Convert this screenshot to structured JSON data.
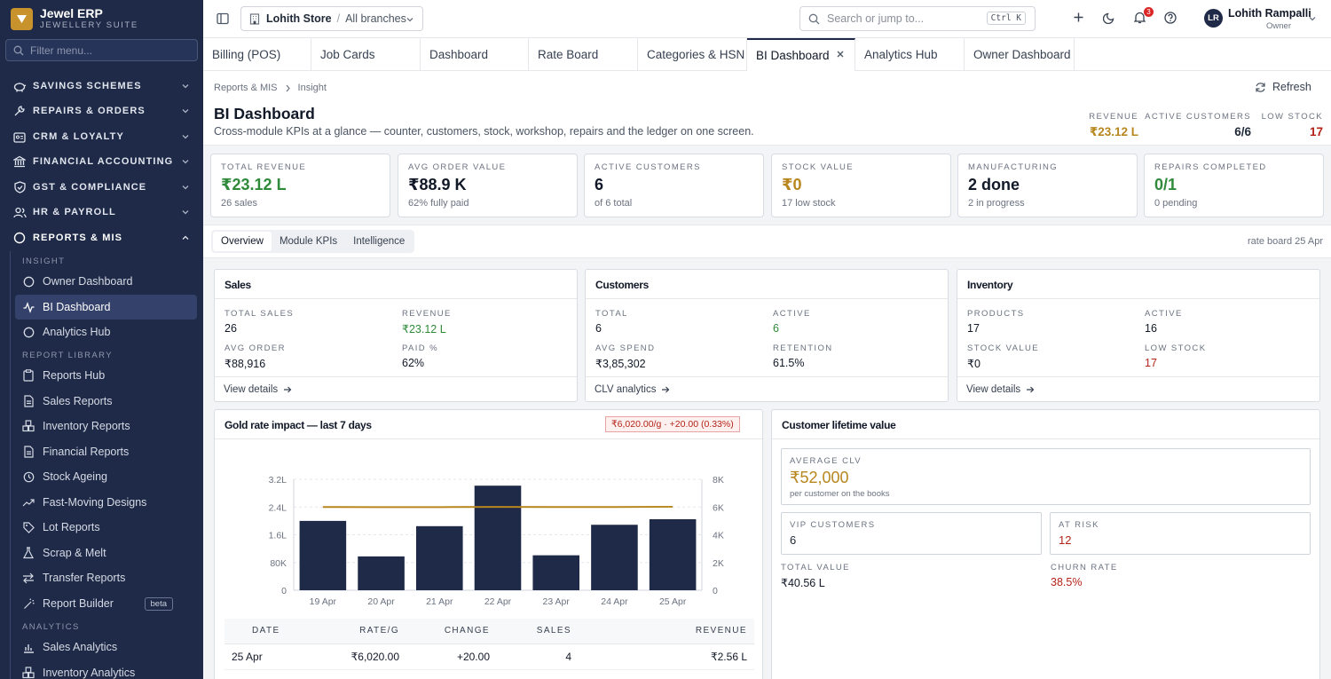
{
  "brand": {
    "name": "Jewel ERP",
    "subtitle": "JEWELLERY SUITE"
  },
  "sidebar": {
    "filter_placeholder": "Filter menu...",
    "sections": [
      {
        "label": "SAVINGS SCHEMES",
        "icon": "piggy-bank-icon"
      },
      {
        "label": "REPAIRS & ORDERS",
        "icon": "wrench-icon"
      },
      {
        "label": "CRM & LOYALTY",
        "icon": "id-card-icon"
      },
      {
        "label": "FINANCIAL ACCOUNTING",
        "icon": "bank-icon"
      },
      {
        "label": "GST & COMPLIANCE",
        "icon": "shield-icon"
      },
      {
        "label": "HR & PAYROLL",
        "icon": "users-icon"
      },
      {
        "label": "REPORTS & MIS",
        "icon": "circle-icon",
        "expanded": true
      }
    ],
    "group_insight": "INSIGHT",
    "group_library": "REPORT LIBRARY",
    "group_analytics": "ANALYTICS",
    "items": [
      {
        "label": "Owner Dashboard",
        "icon": "circle-icon"
      },
      {
        "label": "BI Dashboard",
        "icon": "activity-icon",
        "active": true
      },
      {
        "label": "Analytics Hub",
        "icon": "circle-icon"
      },
      {
        "label": "Reports Hub",
        "icon": "clipboard-icon"
      },
      {
        "label": "Sales Reports",
        "icon": "document-icon"
      },
      {
        "label": "Inventory Reports",
        "icon": "boxes-icon"
      },
      {
        "label": "Financial Reports",
        "icon": "document-icon"
      },
      {
        "label": "Stock Ageing",
        "icon": "clock-icon"
      },
      {
        "label": "Fast-Moving Designs",
        "icon": "trending-up-icon"
      },
      {
        "label": "Lot Reports",
        "icon": "tag-icon"
      },
      {
        "label": "Scrap & Melt",
        "icon": "flask-icon"
      },
      {
        "label": "Transfer Reports",
        "icon": "transfer-icon"
      },
      {
        "label": "Report Builder",
        "icon": "wand-icon",
        "badge": "beta"
      },
      {
        "label": "Sales Analytics",
        "icon": "chart-icon"
      },
      {
        "label": "Inventory Analytics",
        "icon": "boxes-icon"
      }
    ]
  },
  "topbar": {
    "store": "Lohith Store",
    "branch": "All branches",
    "search_placeholder": "Search or jump to...",
    "shortcut": "Ctrl K",
    "notifications": "3",
    "user": {
      "initials": "LR",
      "name": "Lohith Rampalli",
      "role": "Owner"
    }
  },
  "tabs": [
    "Billing (POS)",
    "Job Cards",
    "Dashboard",
    "Rate Board",
    "Categories & HSN",
    "BI Dashboard",
    "Analytics Hub",
    "Owner Dashboard"
  ],
  "active_tab": "BI Dashboard",
  "breadcrumb": {
    "parent": "Reports & MIS",
    "current": "Insight"
  },
  "refresh_label": "Refresh",
  "page": {
    "title": "BI Dashboard",
    "subtitle": "Cross-module KPIs at a glance — counter, customers, stock, workshop, repairs and the ledger on one screen."
  },
  "header_stats": [
    {
      "label": "REVENUE",
      "value": "₹23.12 L"
    },
    {
      "label": "ACTIVE CUSTOMERS",
      "value": "6/6"
    },
    {
      "label": "LOW STOCK",
      "value": "17"
    }
  ],
  "kpis": [
    {
      "label": "TOTAL REVENUE",
      "value": "₹23.12 L",
      "sub": "26 sales"
    },
    {
      "label": "AVG ORDER VALUE",
      "value": "₹88.9 K",
      "sub": "62% fully paid"
    },
    {
      "label": "ACTIVE CUSTOMERS",
      "value": "6",
      "sub": "of 6 total"
    },
    {
      "label": "STOCK VALUE",
      "value": "₹0",
      "sub": "17 low stock"
    },
    {
      "label": "MANUFACTURING",
      "value": "2 done",
      "sub": "2 in progress"
    },
    {
      "label": "REPAIRS COMPLETED",
      "value": "0/1",
      "sub": "0 pending"
    }
  ],
  "view_tabs": [
    "Overview",
    "Module KPIs",
    "Intelligence"
  ],
  "rate_board_note": "rate board 25 Apr",
  "sales_panel": {
    "title": "Sales",
    "cells": [
      {
        "label": "TOTAL SALES",
        "value": "26"
      },
      {
        "label": "REVENUE",
        "value": "₹23.12 L"
      },
      {
        "label": "AVG ORDER",
        "value": "₹88,916"
      },
      {
        "label": "PAID %",
        "value": "62%"
      }
    ],
    "footer": "View details"
  },
  "customers_panel": {
    "title": "Customers",
    "cells": [
      {
        "label": "TOTAL",
        "value": "6"
      },
      {
        "label": "ACTIVE",
        "value": "6"
      },
      {
        "label": "AVG SPEND",
        "value": "₹3,85,302"
      },
      {
        "label": "RETENTION",
        "value": "61.5%"
      }
    ],
    "footer": "CLV analytics"
  },
  "inventory_panel": {
    "title": "Inventory",
    "cells": [
      {
        "label": "PRODUCTS",
        "value": "17"
      },
      {
        "label": "ACTIVE",
        "value": "16"
      },
      {
        "label": "STOCK VALUE",
        "value": "₹0"
      },
      {
        "label": "LOW STOCK",
        "value": "17"
      }
    ],
    "footer": "View details"
  },
  "gold_panel": {
    "title": "Gold rate impact — last 7 days",
    "rate_chip": "₹6,020.00/g · +20.00 (0.33%)"
  },
  "chart_data": {
    "type": "bar",
    "categories": [
      "19 Apr",
      "20 Apr",
      "21 Apr",
      "22 Apr",
      "23 Apr",
      "24 Apr",
      "25 Apr"
    ],
    "series": [
      {
        "name": "Revenue",
        "type": "bar",
        "axis": "left",
        "values": [
          250000,
          122000,
          231000,
          377000,
          126000,
          236000,
          256000
        ],
        "color": "#1e2a47"
      },
      {
        "name": "Rate / g",
        "type": "line",
        "axis": "right",
        "values": [
          6000,
          5990,
          5995,
          6005,
          6000,
          6000,
          6020
        ],
        "color": "#b7861d"
      }
    ],
    "y_left": {
      "ticks": [
        "0",
        "80K",
        "1.6L",
        "2.4L",
        "3.2L"
      ],
      "range": [
        0,
        400000
      ]
    },
    "y_right": {
      "ticks": [
        "0",
        "2K",
        "4K",
        "6K",
        "8K"
      ],
      "range": [
        0,
        8000
      ]
    },
    "grid": "horizontal dashed",
    "legend": "bottom-center"
  },
  "rate_table": {
    "headers": [
      "DATE",
      "RATE/G",
      "CHANGE",
      "SALES",
      "REVENUE"
    ],
    "rows": [
      [
        "25 Apr",
        "₹6,020.00",
        "+20.00",
        "4",
        "₹2.56 L"
      ]
    ]
  },
  "clv_panel": {
    "title": "Customer lifetime value",
    "avg_label": "AVERAGE CLV",
    "avg_value": "₹52,000",
    "avg_sub": "per customer on the books",
    "vip_label": "VIP CUSTOMERS",
    "vip_value": "6",
    "risk_label": "AT RISK",
    "risk_value": "12",
    "total_label": "TOTAL VALUE",
    "total_value": "₹40.56 L",
    "churn_label": "CHURN RATE",
    "churn_value": "38.5%"
  }
}
